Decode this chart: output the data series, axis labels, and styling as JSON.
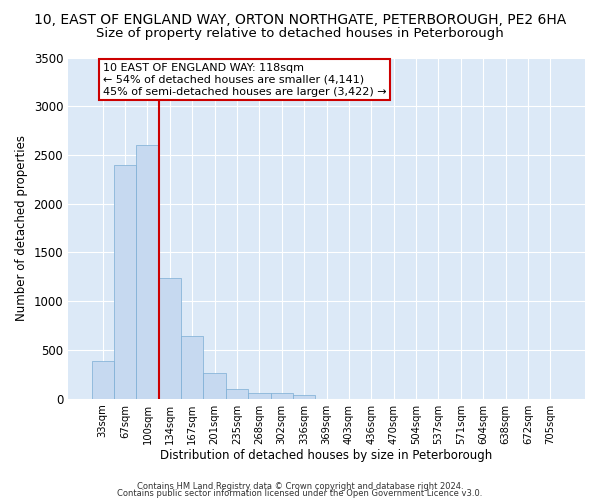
{
  "title": "10, EAST OF ENGLAND WAY, ORTON NORTHGATE, PETERBOROUGH, PE2 6HA",
  "subtitle": "Size of property relative to detached houses in Peterborough",
  "xlabel": "Distribution of detached houses by size in Peterborough",
  "ylabel": "Number of detached properties",
  "categories": [
    "33sqm",
    "67sqm",
    "100sqm",
    "134sqm",
    "167sqm",
    "201sqm",
    "235sqm",
    "268sqm",
    "302sqm",
    "336sqm",
    "369sqm",
    "403sqm",
    "436sqm",
    "470sqm",
    "504sqm",
    "537sqm",
    "571sqm",
    "604sqm",
    "638sqm",
    "672sqm",
    "705sqm"
  ],
  "values": [
    390,
    2400,
    2600,
    1240,
    640,
    260,
    95,
    55,
    55,
    40,
    0,
    0,
    0,
    0,
    0,
    0,
    0,
    0,
    0,
    0,
    0
  ],
  "bar_color": "#c6d9f0",
  "bar_edge_color": "#7aadd4",
  "vline_index": 2,
  "annotation_text": "10 EAST OF ENGLAND WAY: 118sqm\n← 54% of detached houses are smaller (4,141)\n45% of semi-detached houses are larger (3,422) →",
  "annotation_box_color": "#ffffff",
  "annotation_box_edge_color": "#cc0000",
  "vline_color": "#cc0000",
  "ylim": [
    0,
    3500
  ],
  "yticks": [
    0,
    500,
    1000,
    1500,
    2000,
    2500,
    3000,
    3500
  ],
  "background_color": "#dce9f7",
  "grid_color": "#ffffff",
  "title_fontsize": 10,
  "subtitle_fontsize": 9.5,
  "footer1": "Contains HM Land Registry data © Crown copyright and database right 2024.",
  "footer2": "Contains public sector information licensed under the Open Government Licence v3.0."
}
